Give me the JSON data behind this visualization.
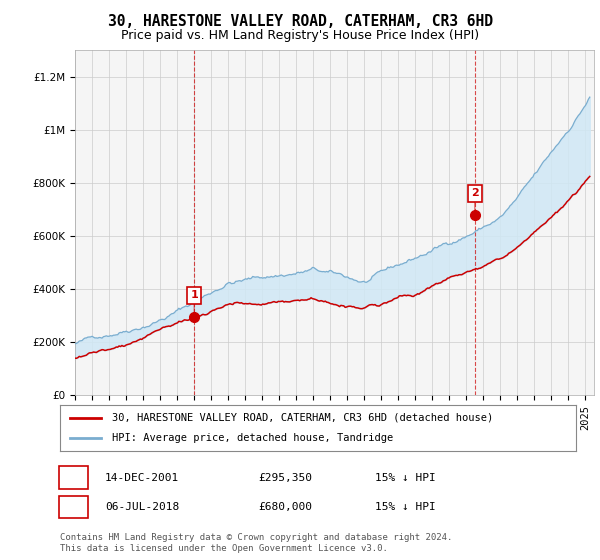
{
  "title": "30, HARESTONE VALLEY ROAD, CATERHAM, CR3 6HD",
  "subtitle": "Price paid vs. HM Land Registry's House Price Index (HPI)",
  "ylabel_ticks": [
    "£0",
    "£200K",
    "£400K",
    "£600K",
    "£800K",
    "£1M",
    "£1.2M"
  ],
  "ytick_values": [
    0,
    200000,
    400000,
    600000,
    800000,
    1000000,
    1200000
  ],
  "ylim": [
    0,
    1300000
  ],
  "xlim_start": 1995.0,
  "xlim_end": 2025.5,
  "marker1_x": 2002.0,
  "marker1_y": 295350,
  "marker2_x": 2018.5,
  "marker2_y": 680000,
  "marker1_date": "14-DEC-2001",
  "marker1_price": "£295,350",
  "marker1_note": "15% ↓ HPI",
  "marker2_date": "06-JUL-2018",
  "marker2_price": "£680,000",
  "marker2_note": "15% ↓ HPI",
  "red_line_color": "#cc0000",
  "blue_line_color": "#7aadcf",
  "fill_color": "#d0e8f5",
  "marker_box_color": "#cc0000",
  "vline_color": "#cc0000",
  "grid_color": "#cccccc",
  "bg_color": "#f5f5f5",
  "legend_label_red": "30, HARESTONE VALLEY ROAD, CATERHAM, CR3 6HD (detached house)",
  "legend_label_blue": "HPI: Average price, detached house, Tandridge",
  "footer": "Contains HM Land Registry data © Crown copyright and database right 2024.\nThis data is licensed under the Open Government Licence v3.0.",
  "title_fontsize": 10.5,
  "subtitle_fontsize": 9,
  "tick_fontsize": 7.5,
  "legend_fontsize": 7.5,
  "table_fontsize": 8,
  "footer_fontsize": 6.5
}
